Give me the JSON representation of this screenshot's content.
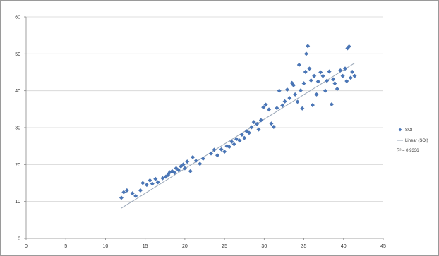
{
  "chart_data": {
    "type": "scatter",
    "title": "",
    "xlabel": "",
    "ylabel": "",
    "xlim": [
      0,
      45
    ],
    "ylim": [
      0,
      60
    ],
    "x_ticks": [
      "0",
      "5",
      "10",
      "15",
      "20",
      "25",
      "30",
      "35",
      "40",
      "45"
    ],
    "y_ticks": [
      "0",
      "10",
      "20",
      "30",
      "40",
      "50",
      "60"
    ],
    "grid": "horizontal",
    "legend_position": "right",
    "series": [
      {
        "name": "SOI",
        "color": "#4a76b8",
        "points": [
          [
            12.0,
            11.0
          ],
          [
            12.3,
            12.5
          ],
          [
            12.7,
            13.0
          ],
          [
            13.4,
            12.2
          ],
          [
            13.8,
            11.5
          ],
          [
            14.4,
            13.0
          ],
          [
            14.7,
            15.0
          ],
          [
            15.2,
            14.5
          ],
          [
            15.6,
            15.7
          ],
          [
            15.9,
            14.8
          ],
          [
            16.3,
            16.1
          ],
          [
            16.6,
            15.2
          ],
          [
            17.2,
            16.3
          ],
          [
            17.6,
            16.7
          ],
          [
            17.9,
            17.2
          ],
          [
            18.1,
            17.9
          ],
          [
            18.4,
            18.2
          ],
          [
            18.7,
            17.8
          ],
          [
            18.9,
            19.0
          ],
          [
            19.2,
            18.5
          ],
          [
            19.5,
            19.5
          ],
          [
            19.8,
            20.0
          ],
          [
            20.0,
            19.0
          ],
          [
            20.3,
            20.8
          ],
          [
            20.7,
            18.2
          ],
          [
            21.0,
            22.0
          ],
          [
            21.4,
            21.0
          ],
          [
            21.9,
            20.2
          ],
          [
            22.3,
            21.6
          ],
          [
            23.3,
            23.0
          ],
          [
            23.7,
            24.0
          ],
          [
            24.1,
            22.5
          ],
          [
            24.6,
            24.1
          ],
          [
            25.0,
            23.5
          ],
          [
            25.3,
            25.0
          ],
          [
            25.6,
            24.8
          ],
          [
            25.9,
            26.2
          ],
          [
            26.2,
            25.5
          ],
          [
            26.5,
            26.9
          ],
          [
            26.9,
            26.5
          ],
          [
            27.2,
            28.1
          ],
          [
            27.5,
            27.2
          ],
          [
            27.8,
            29.0
          ],
          [
            28.1,
            28.6
          ],
          [
            28.4,
            30.1
          ],
          [
            28.7,
            31.5
          ],
          [
            29.1,
            31.0
          ],
          [
            29.3,
            29.5
          ],
          [
            29.6,
            32.0
          ],
          [
            29.9,
            35.5
          ],
          [
            30.2,
            36.2
          ],
          [
            30.6,
            34.9
          ],
          [
            30.9,
            31.1
          ],
          [
            31.2,
            30.2
          ],
          [
            31.6,
            35.3
          ],
          [
            31.9,
            40.0
          ],
          [
            32.3,
            36.0
          ],
          [
            32.6,
            37.1
          ],
          [
            32.9,
            40.3
          ],
          [
            33.2,
            38.0
          ],
          [
            33.5,
            42.1
          ],
          [
            33.7,
            41.5
          ],
          [
            33.9,
            39.0
          ],
          [
            34.2,
            37.0
          ],
          [
            34.4,
            47.0
          ],
          [
            34.6,
            40.1
          ],
          [
            34.8,
            35.2
          ],
          [
            35.0,
            42.0
          ],
          [
            35.2,
            45.1
          ],
          [
            35.3,
            50.0
          ],
          [
            35.5,
            52.1
          ],
          [
            35.7,
            46.0
          ],
          [
            35.9,
            42.8
          ],
          [
            36.1,
            36.1
          ],
          [
            36.3,
            44.0
          ],
          [
            36.6,
            39.0
          ],
          [
            36.8,
            42.5
          ],
          [
            37.1,
            45.0
          ],
          [
            37.4,
            44.0
          ],
          [
            37.7,
            40.0
          ],
          [
            37.9,
            42.7
          ],
          [
            38.2,
            45.2
          ],
          [
            38.5,
            36.3
          ],
          [
            38.7,
            43.1
          ],
          [
            38.9,
            42.0
          ],
          [
            39.2,
            40.5
          ],
          [
            39.6,
            45.5
          ],
          [
            39.9,
            44.0
          ],
          [
            40.2,
            46.0
          ],
          [
            40.4,
            42.6
          ],
          [
            40.5,
            51.5
          ],
          [
            40.7,
            52.0
          ],
          [
            40.9,
            43.5
          ],
          [
            41.1,
            45.1
          ],
          [
            41.4,
            44.0
          ]
        ]
      }
    ],
    "trendline": {
      "name": "Linear (SOI)",
      "color": "#9aa7b8",
      "x_start": 12,
      "y_start": 8.2,
      "x_end": 41.4,
      "y_end": 47.5
    },
    "annotation": "R² = 0.9336"
  }
}
